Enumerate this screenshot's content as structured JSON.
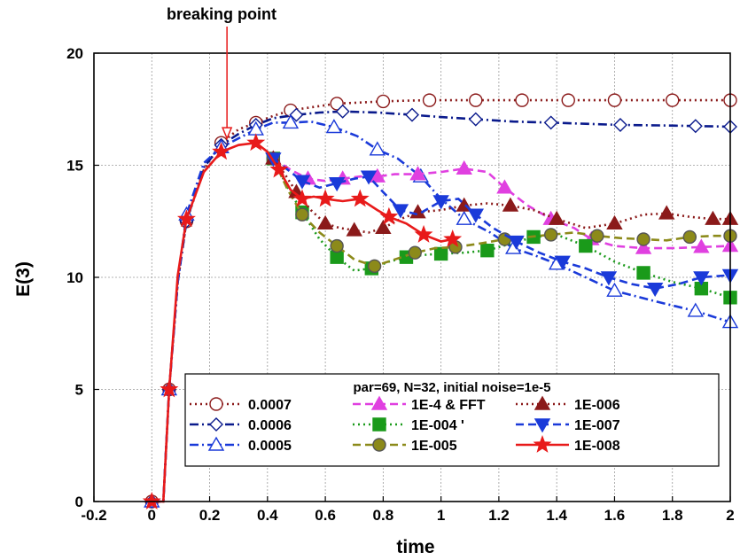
{
  "chart_data": {
    "type": "line",
    "title": "",
    "xlabel": "time",
    "ylabel": "E(3)",
    "xlim": [
      -0.2,
      2
    ],
    "ylim": [
      0,
      20
    ],
    "xticks": [
      "-0.2",
      "0",
      "0.2",
      "0.4",
      "0.6",
      "0.8",
      "1",
      "1.2",
      "1.4",
      "1.6",
      "1.8",
      "2"
    ],
    "yticks": [
      "0",
      "5",
      "10",
      "15",
      "20"
    ],
    "grid": true,
    "annotation": {
      "text": "breaking point",
      "x": 0.26,
      "y": 16.2
    },
    "legend": {
      "title": "par=69, N=32, initial noise=1e-5",
      "position": "bottom-right"
    },
    "series": [
      {
        "name": "0.0007",
        "color": "#8b1a1a",
        "marker": "circle-open",
        "dash": "dot",
        "x": [
          0,
          0.04,
          0.06,
          0.09,
          0.12,
          0.18,
          0.24,
          0.3,
          0.36,
          0.42,
          0.48,
          0.56,
          0.64,
          0.72,
          0.8,
          0.88,
          0.96,
          1.04,
          1.12,
          1.2,
          1.28,
          1.36,
          1.44,
          1.52,
          1.6,
          1.7,
          1.8,
          1.9,
          2.0
        ],
        "y": [
          0,
          0,
          5,
          9.8,
          12.5,
          14.8,
          16.0,
          16.6,
          16.9,
          17.2,
          17.45,
          17.6,
          17.75,
          17.8,
          17.85,
          17.88,
          17.9,
          17.9,
          17.9,
          17.9,
          17.9,
          17.9,
          17.9,
          17.9,
          17.9,
          17.9,
          17.9,
          17.9,
          17.9
        ]
      },
      {
        "name": "0.0006",
        "color": "#0a1a8c",
        "marker": "diamond-open",
        "dash": "dashdot",
        "x": [
          0,
          0.04,
          0.06,
          0.09,
          0.12,
          0.18,
          0.24,
          0.3,
          0.36,
          0.42,
          0.5,
          0.58,
          0.66,
          0.78,
          0.9,
          1.0,
          1.12,
          1.25,
          1.38,
          1.5,
          1.62,
          1.75,
          1.88,
          2.0
        ],
        "y": [
          0,
          0,
          5,
          9.8,
          12.5,
          14.9,
          15.9,
          16.4,
          16.8,
          17.1,
          17.25,
          17.35,
          17.4,
          17.35,
          17.25,
          17.15,
          17.05,
          16.95,
          16.9,
          16.85,
          16.8,
          16.78,
          16.75,
          16.72
        ]
      },
      {
        "name": "0.0005",
        "color": "#1a3ad9",
        "marker": "triangle-up-open",
        "dash": "dashdot",
        "x": [
          0,
          0.04,
          0.06,
          0.09,
          0.12,
          0.18,
          0.24,
          0.3,
          0.36,
          0.42,
          0.48,
          0.55,
          0.63,
          0.71,
          0.78,
          0.85,
          0.93,
          1.0,
          1.08,
          1.17,
          1.25,
          1.32,
          1.4,
          1.5,
          1.6,
          1.75,
          1.88,
          2.0
        ],
        "y": [
          0,
          0,
          5,
          9.8,
          12.8,
          15.1,
          15.8,
          16.2,
          16.6,
          16.9,
          16.9,
          16.95,
          16.7,
          16.3,
          15.7,
          15.3,
          14.5,
          13.5,
          12.6,
          12.0,
          11.3,
          11.0,
          10.6,
          10.0,
          9.4,
          8.9,
          8.5,
          8.0
        ]
      },
      {
        "name": "1E-4 & FFT",
        "color": "#e040e0",
        "marker": "triangle-up",
        "dash": "dash",
        "x": [
          0.42,
          0.48,
          0.54,
          0.6,
          0.66,
          0.72,
          0.78,
          0.84,
          0.92,
          1.0,
          1.08,
          1.16,
          1.22,
          1.3,
          1.38,
          1.46,
          1.52,
          1.6,
          1.7,
          1.8,
          1.9,
          2.0
        ],
        "y": [
          15.3,
          14.8,
          14.4,
          14.3,
          14.4,
          14.5,
          14.5,
          14.6,
          14.6,
          14.7,
          14.85,
          14.7,
          14.0,
          13.2,
          12.6,
          12.2,
          11.7,
          11.4,
          11.3,
          11.3,
          11.35,
          11.4
        ]
      },
      {
        "name": "1E-004 '",
        "color": "#1a9a1a",
        "marker": "square",
        "dash": "dot",
        "x": [
          0.42,
          0.47,
          0.52,
          0.58,
          0.64,
          0.7,
          0.76,
          0.82,
          0.88,
          0.94,
          1.0,
          1.08,
          1.16,
          1.24,
          1.32,
          1.4,
          1.5,
          1.6,
          1.7,
          1.8,
          1.9,
          2.0
        ],
        "y": [
          15.3,
          14.0,
          12.9,
          11.7,
          10.9,
          10.3,
          10.4,
          10.7,
          10.9,
          11.0,
          11.05,
          11.1,
          11.2,
          11.5,
          11.8,
          11.9,
          11.4,
          10.7,
          10.2,
          9.8,
          9.5,
          9.1
        ]
      },
      {
        "name": "1E-005",
        "color": "#8c8a1a",
        "marker": "circle",
        "dash": "dash",
        "x": [
          0.42,
          0.47,
          0.52,
          0.58,
          0.64,
          0.7,
          0.77,
          0.84,
          0.91,
          0.98,
          1.05,
          1.13,
          1.22,
          1.3,
          1.38,
          1.46,
          1.54,
          1.62,
          1.7,
          1.78,
          1.86,
          1.94,
          2.0
        ],
        "y": [
          15.3,
          13.9,
          12.8,
          12.0,
          11.4,
          10.8,
          10.5,
          10.8,
          11.1,
          11.3,
          11.35,
          11.5,
          11.7,
          11.8,
          11.9,
          12.0,
          11.85,
          11.75,
          11.7,
          11.65,
          11.8,
          11.85,
          11.85
        ]
      },
      {
        "name": "1E-006",
        "color": "#8b1a1a",
        "marker": "triangle-up",
        "dash": "dot",
        "x": [
          0.42,
          0.46,
          0.5,
          0.55,
          0.6,
          0.65,
          0.7,
          0.75,
          0.8,
          0.86,
          0.92,
          1.0,
          1.08,
          1.16,
          1.24,
          1.32,
          1.4,
          1.5,
          1.6,
          1.7,
          1.78,
          1.86,
          1.94,
          2.0
        ],
        "y": [
          15.3,
          14.6,
          13.8,
          13.0,
          12.4,
          12.2,
          12.1,
          12.0,
          12.2,
          12.6,
          12.9,
          13.0,
          13.2,
          13.3,
          13.2,
          13.0,
          12.6,
          12.2,
          12.4,
          12.8,
          12.85,
          12.7,
          12.6,
          12.6
        ]
      },
      {
        "name": "1E-007",
        "color": "#1a3ad9",
        "marker": "triangle-down",
        "dash": "dash",
        "x": [
          0.42,
          0.47,
          0.52,
          0.58,
          0.64,
          0.7,
          0.75,
          0.8,
          0.86,
          0.92,
          1.0,
          1.06,
          1.12,
          1.18,
          1.26,
          1.34,
          1.42,
          1.5,
          1.58,
          1.66,
          1.74,
          1.82,
          1.9,
          2.0
        ],
        "y": [
          15.3,
          14.8,
          14.3,
          14.0,
          14.2,
          14.4,
          14.5,
          13.8,
          13.0,
          12.8,
          13.4,
          13.5,
          12.8,
          12.2,
          11.6,
          11.1,
          10.7,
          10.4,
          10.0,
          9.7,
          9.5,
          9.7,
          10.0,
          10.1
        ]
      },
      {
        "name": "1E-008",
        "color": "#e81a1a",
        "marker": "star",
        "dash": "solid",
        "x": [
          0,
          0.04,
          0.06,
          0.09,
          0.12,
          0.18,
          0.24,
          0.3,
          0.36,
          0.4,
          0.44,
          0.48,
          0.52,
          0.56,
          0.6,
          0.66,
          0.72,
          0.78,
          0.82,
          0.88,
          0.94,
          1.0,
          1.04
        ],
        "y": [
          0,
          0,
          5,
          10.1,
          12.6,
          14.7,
          15.6,
          15.9,
          16.0,
          15.6,
          14.8,
          13.9,
          13.5,
          13.6,
          13.5,
          13.4,
          13.5,
          13.0,
          12.7,
          12.4,
          11.9,
          11.6,
          11.7
        ]
      }
    ]
  }
}
